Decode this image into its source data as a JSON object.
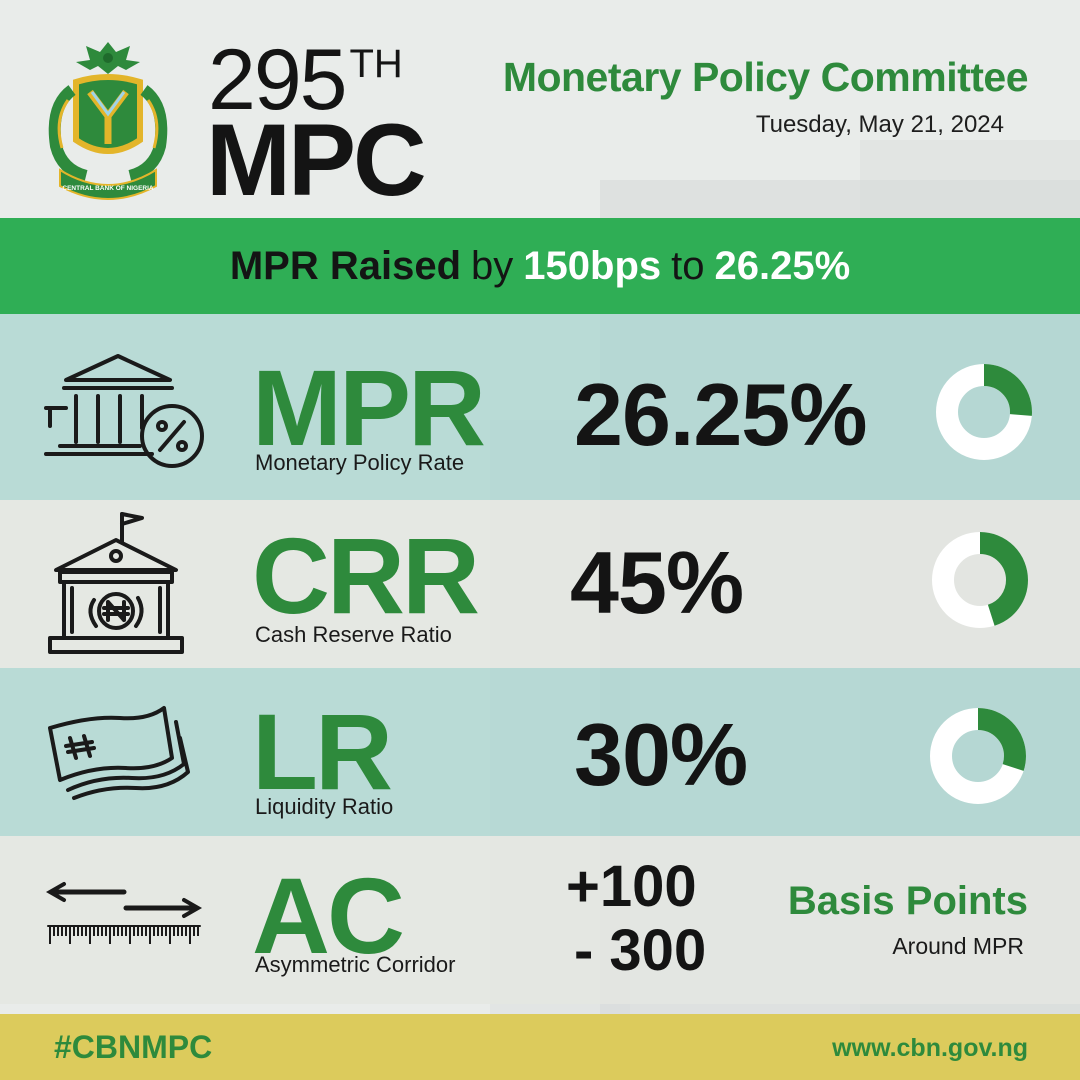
{
  "header": {
    "meeting_number": "295",
    "meeting_suffix": "TH",
    "meeting_label": "MPC",
    "committee": "Monetary Policy Committee",
    "date": "Tuesday, May 21, 2024",
    "seal_text": "CENTRAL BANK OF NIGERIA"
  },
  "banner": {
    "part1": "MPR Raised",
    "part2": "by",
    "part3": "150bps",
    "part4": "to",
    "part5": "26.25%"
  },
  "rates": [
    {
      "abbr": "MPR",
      "name": "Monetary Policy Rate",
      "value": "26.25%",
      "fraction": 0.2625,
      "icon": "bank-percent-icon"
    },
    {
      "abbr": "CRR",
      "name": "Cash Reserve Ratio",
      "value": "45%",
      "fraction": 0.45,
      "icon": "bank-naira-icon"
    },
    {
      "abbr": "LR",
      "name": "Liquidity Ratio",
      "value": "30%",
      "fraction": 0.3,
      "icon": "naira-notes-icon"
    }
  ],
  "corridor": {
    "abbr": "AC",
    "name": "Asymmetric Corridor",
    "upper": "+100",
    "lower": "- 300",
    "unit_title": "Basis Points",
    "unit_sub": "Around MPR",
    "icon": "ruler-arrows-icon"
  },
  "footer": {
    "hashtag": "#CBNMPC",
    "website": "www.cbn.gov.ng"
  },
  "colors": {
    "green": "#2e8a3c",
    "banner": "#2fae55",
    "footer": "#dccb5c",
    "donut_track": "#ffffff"
  }
}
